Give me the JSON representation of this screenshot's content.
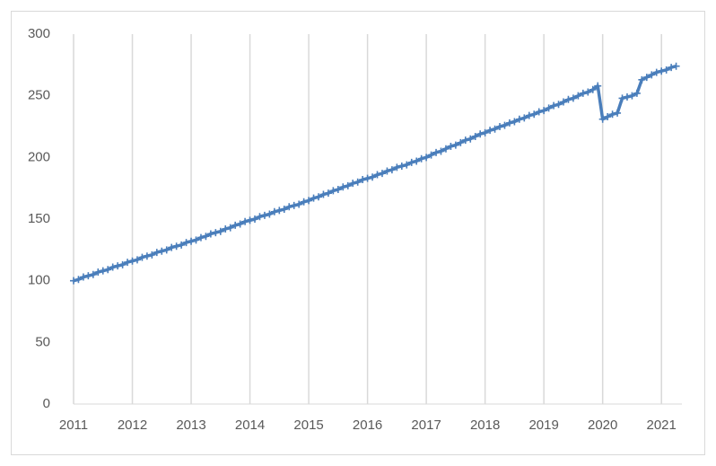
{
  "chart_data": {
    "type": "line",
    "categories": [
      "2011",
      null,
      null,
      null,
      null,
      null,
      null,
      null,
      null,
      null,
      null,
      null,
      "2012",
      null,
      null,
      null,
      null,
      null,
      null,
      null,
      null,
      null,
      null,
      null,
      "2013",
      null,
      null,
      null,
      null,
      null,
      null,
      null,
      null,
      null,
      null,
      null,
      "2014",
      null,
      null,
      null,
      null,
      null,
      null,
      null,
      null,
      null,
      null,
      null,
      "2015",
      null,
      null,
      null,
      null,
      null,
      null,
      null,
      null,
      null,
      null,
      null,
      "2016",
      null,
      null,
      null,
      null,
      null,
      null,
      null,
      null,
      null,
      null,
      null,
      "2017",
      null,
      null,
      null,
      null,
      null,
      null,
      null,
      null,
      null,
      null,
      null,
      "2018",
      null,
      null,
      null,
      null,
      null,
      null,
      null,
      null,
      null,
      null,
      null,
      "2019",
      null,
      null,
      null,
      null,
      null,
      null,
      null,
      null,
      null,
      null,
      null,
      "2020",
      null,
      null,
      null,
      null,
      null,
      null,
      null,
      null,
      null,
      null,
      null,
      "2021",
      null,
      null,
      null
    ],
    "values": [
      100,
      101,
      103,
      104,
      105,
      107,
      108,
      109,
      111,
      112,
      113,
      115,
      116,
      117,
      119,
      120,
      121,
      123,
      124,
      125,
      127,
      128,
      129,
      131,
      132,
      133,
      135,
      136,
      138,
      139,
      140,
      142,
      143,
      145,
      146,
      148,
      149,
      150,
      152,
      153,
      154,
      156,
      157,
      158,
      160,
      161,
      162,
      164,
      165,
      167,
      168,
      170,
      171,
      173,
      174,
      176,
      177,
      179,
      180,
      182,
      183,
      184,
      186,
      187,
      189,
      190,
      192,
      193,
      194,
      196,
      197,
      199,
      200,
      202,
      204,
      205,
      207,
      209,
      210,
      212,
      214,
      215,
      217,
      219,
      220,
      222,
      223,
      225,
      226,
      228,
      229,
      231,
      232,
      234,
      235,
      237,
      238,
      240,
      242,
      243,
      245,
      247,
      248,
      250,
      252,
      253,
      255,
      258,
      231,
      233,
      235,
      236,
      248,
      249,
      250,
      252,
      263,
      265,
      267,
      269,
      270,
      271,
      273,
      274
    ],
    "color": "#4a7ebb",
    "ylim": [
      0,
      300
    ],
    "yticks": [
      0,
      50,
      100,
      150,
      200,
      250,
      300
    ],
    "grid": "vertical"
  }
}
